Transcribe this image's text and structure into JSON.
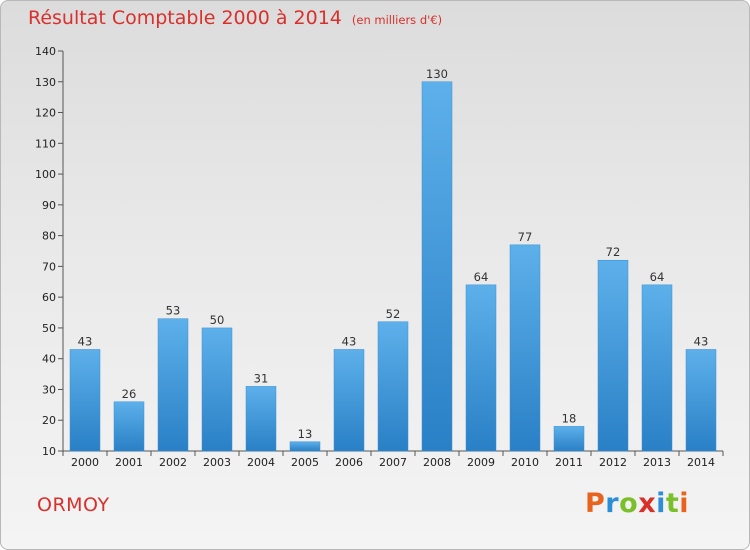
{
  "title": "Résultat Comptable 2000 à 2014",
  "subtitle": "(en milliers d'€)",
  "town": "ORMOY",
  "logo": {
    "text": "Proxiti",
    "colors": [
      "#e8641e",
      "#2c8fd6",
      "#7bbf2a",
      "#d9302c",
      "#2c8fd6",
      "#7bbf2a",
      "#e8641e"
    ]
  },
  "colors": {
    "accent": "#d9302c",
    "bar": "#4aa0dd",
    "bar_dark": "#2a7fc4"
  },
  "chart_data": {
    "type": "bar",
    "title": "Résultat Comptable 2000 à 2014",
    "xlabel": "",
    "ylabel": "(en milliers d'€)",
    "categories": [
      "2000",
      "2001",
      "2002",
      "2003",
      "2004",
      "2005",
      "2006",
      "2007",
      "2008",
      "2009",
      "2010",
      "2011",
      "2012",
      "2013",
      "2014"
    ],
    "values": [
      43,
      26,
      53,
      50,
      31,
      13,
      43,
      52,
      130,
      64,
      77,
      18,
      72,
      64,
      43
    ],
    "ylim": [
      10,
      140
    ],
    "yticks": [
      10,
      20,
      30,
      40,
      50,
      60,
      70,
      80,
      90,
      100,
      110,
      120,
      130,
      140
    ],
    "grid": false,
    "legend": "none"
  }
}
